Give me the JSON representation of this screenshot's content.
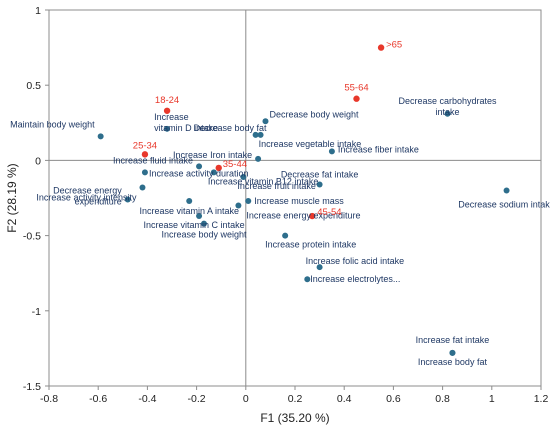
{
  "chart_data": {
    "type": "scatter",
    "title": "",
    "xlabel": "F1 (35.20 %)",
    "ylabel": "F2 (28.19 %)",
    "xlim": [
      -0.8,
      1.2
    ],
    "ylim": [
      -1.5,
      1.0
    ],
    "x_ticks": [
      "-0.8",
      "-0.6",
      "-0.4",
      "-0.2",
      "0",
      "0.2",
      "0.4",
      "0.6",
      "0.8",
      "1",
      "1.2"
    ],
    "y_ticks": [
      "1",
      "0.5",
      "0",
      "-0.5",
      "-1",
      "-1.5"
    ],
    "grid": false,
    "colors": {
      "variables": "#2e6e8c",
      "age_groups": "#e8382b",
      "variable_text": "#1f3864"
    },
    "series": [
      {
        "points": [
          {
            "label": "Maintain body weight",
            "x": -0.59,
            "y": 0.16
          },
          {
            "label": "Increase vitamin D intake",
            "x": -0.32,
            "y": 0.21
          },
          {
            "label": "Decrease body fat",
            "x": 0.06,
            "y": 0.17
          },
          {
            "label": "Decrease body weight",
            "x": 0.08,
            "y": 0.26
          },
          {
            "label": "Increase vegetable intake",
            "x": 0.04,
            "y": 0.17
          },
          {
            "label": "Decrease carbohydrates intake",
            "x": 0.82,
            "y": 0.31
          },
          {
            "label": "Increase fiber intake",
            "x": 0.35,
            "y": 0.06
          },
          {
            "label": "Increase Iron intake",
            "x": 0.05,
            "y": 0.01
          },
          {
            "label": "Increase fluid intake",
            "x": -0.19,
            "y": -0.04
          },
          {
            "label": "Increase activity duration",
            "x": -0.41,
            "y": -0.08
          },
          {
            "label": "Increase vitamin B12 intake",
            "x": -0.13,
            "y": -0.08
          },
          {
            "label": "Increase fruit intake",
            "x": -0.01,
            "y": -0.11
          },
          {
            "label": "Increase activity intensity",
            "x": -0.42,
            "y": -0.18
          },
          {
            "label": "Decrease fat intake",
            "x": 0.3,
            "y": -0.16
          },
          {
            "label": "Decrease sodium intake",
            "x": 1.06,
            "y": -0.2
          },
          {
            "label": "Decrease energy expenditure",
            "x": -0.48,
            "y": -0.26
          },
          {
            "label": "Increase vitamin A intake",
            "x": -0.23,
            "y": -0.27
          },
          {
            "label": "Increase muscle mass",
            "x": 0.01,
            "y": -0.27
          },
          {
            "label": "Increase vitamin C intake",
            "x": -0.19,
            "y": -0.37
          },
          {
            "label": "Increase energy expenditure",
            "x": -0.03,
            "y": -0.3
          },
          {
            "label": "Increase body weight",
            "x": -0.17,
            "y": -0.42
          },
          {
            "label": "Increase protein intake",
            "x": 0.16,
            "y": -0.5
          },
          {
            "label": "Increase folic acid intake",
            "x": 0.3,
            "y": -0.71
          },
          {
            "label": "Increase electrolytes...",
            "x": 0.25,
            "y": -0.79
          },
          {
            "label": "Increase fat intake",
            "x": 0.84,
            "y": -1.28
          },
          {
            "label": "Increase body fat",
            "x": 0.84,
            "y": -1.28
          }
        ]
      },
      {
        "points": [
          {
            "label": "18-24",
            "x": -0.32,
            "y": 0.33
          },
          {
            "label": "25-34",
            "x": -0.41,
            "y": 0.04
          },
          {
            "label": "35-44",
            "x": -0.11,
            "y": -0.05
          },
          {
            "label": "45-54",
            "x": 0.27,
            "y": -0.37
          },
          {
            "label": "55-64",
            "x": 0.45,
            "y": 0.41
          },
          {
            "label": ">65",
            "x": 0.55,
            "y": 0.75
          }
        ]
      }
    ]
  }
}
